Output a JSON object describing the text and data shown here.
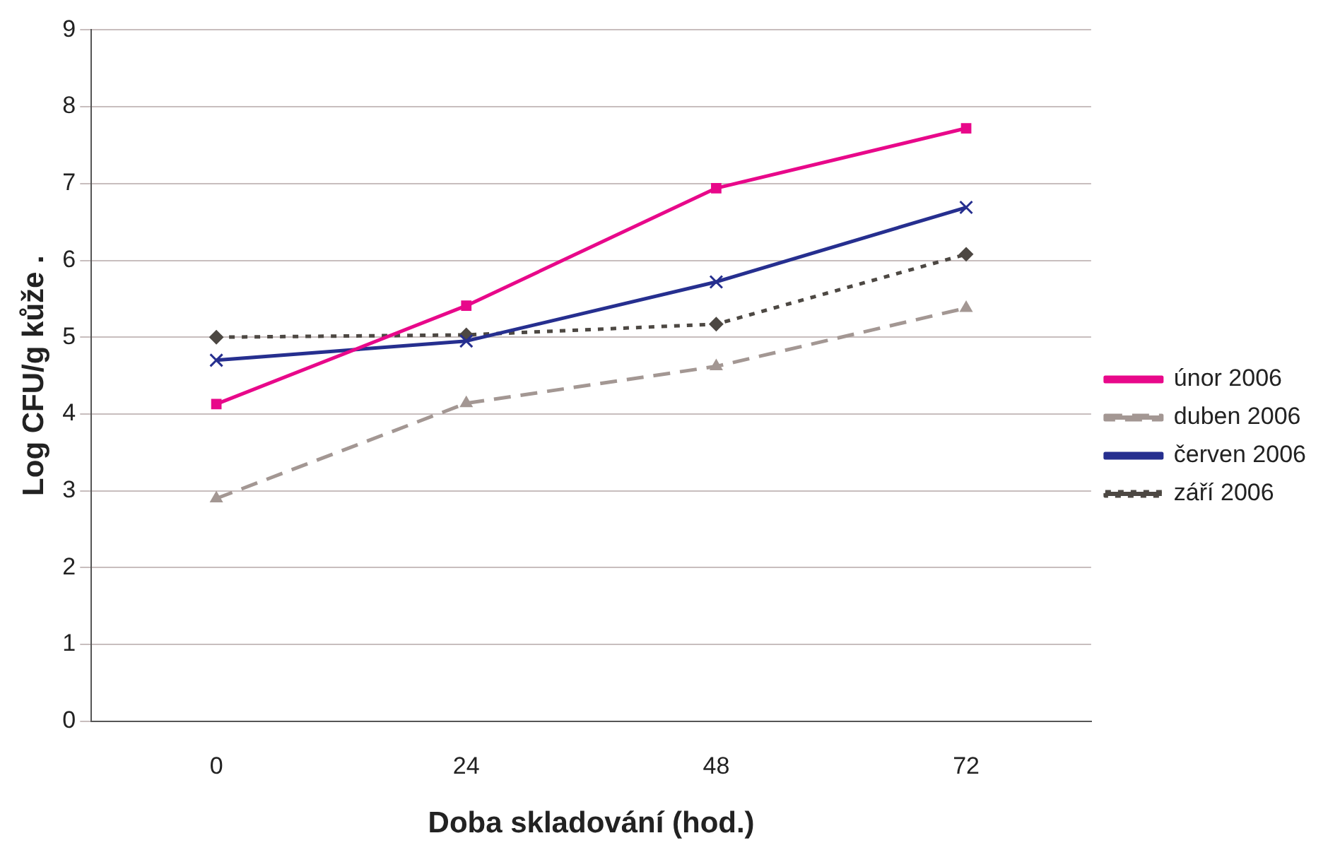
{
  "chart_data": {
    "type": "line",
    "xlabel": "Doba skladování (hod.)",
    "ylabel": "Log CFU/g kůže .",
    "categories": [
      "0",
      "24",
      "48",
      "72"
    ],
    "series": [
      {
        "name": "únor 2006",
        "color": "#e8088a",
        "marker": "square",
        "line_style": "solid",
        "values": [
          4.13,
          5.41,
          6.94,
          7.72
        ]
      },
      {
        "name": "duben 2006",
        "color": "#a39793",
        "marker": "triangle",
        "line_style": "dashed",
        "values": [
          2.9,
          4.14,
          4.62,
          5.38
        ]
      },
      {
        "name": "červen 2006",
        "color": "#262f8f",
        "marker": "cross",
        "line_style": "solid",
        "values": [
          4.7,
          4.95,
          5.72,
          6.69
        ]
      },
      {
        "name": "září 2006",
        "color": "#4d4843",
        "marker": "diamond",
        "line_style": "dotted",
        "values": [
          5.0,
          5.03,
          5.17,
          6.08
        ]
      }
    ],
    "ylim": [
      0,
      9
    ],
    "yticks": [
      0,
      1,
      2,
      3,
      4,
      5,
      6,
      7,
      8,
      9
    ],
    "grid": "y",
    "legend": "right"
  }
}
